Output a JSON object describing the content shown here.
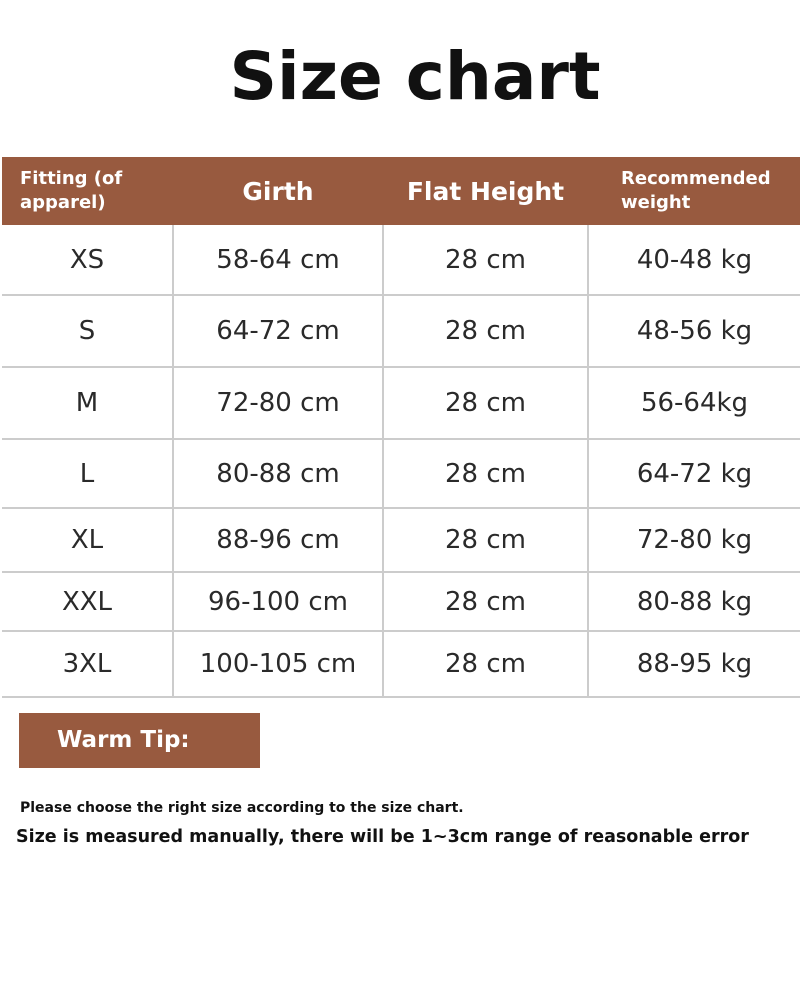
{
  "title": "Size chart",
  "table": {
    "headers": [
      "Fitting (of apparel)",
      "Girth",
      "Flat Height",
      "Recommended weight"
    ],
    "rows": [
      [
        "XS",
        "58-64 cm",
        "28 cm",
        "40-48 kg"
      ],
      [
        "S",
        "64-72 cm",
        "28 cm",
        "48-56 kg"
      ],
      [
        "M",
        "72-80 cm",
        "28 cm",
        "56-64kg"
      ],
      [
        "L",
        "80-88 cm",
        "28 cm",
        "64-72 kg"
      ],
      [
        "XL",
        "88-96 cm",
        "28 cm",
        "72-80 kg"
      ],
      [
        "XXL",
        "96-100 cm",
        "28 cm",
        "80-88 kg"
      ],
      [
        "3XL",
        "100-105 cm",
        "28 cm",
        "88-95 kg"
      ]
    ]
  },
  "tip": {
    "label": "Warm Tip:",
    "lines": [
      "Please choose the right size according to the size chart.",
      "Size is measured manually, there will be 1~3cm range of reasonable error"
    ]
  },
  "colors": {
    "accent": "#985a3f",
    "grid": "#cccccc"
  }
}
